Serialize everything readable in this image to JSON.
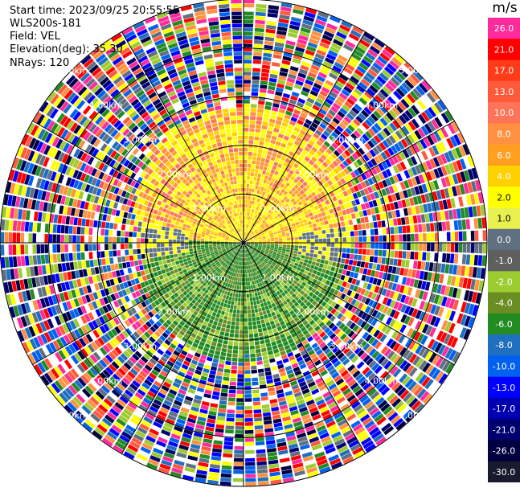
{
  "header": {
    "start_time": "Start time: 2023/09/25 20:55:55",
    "instrument": "WLS200s-181",
    "field": "Field: VEL",
    "elevation": "Elevation(deg): 35.30",
    "nrays": "NRays: 120"
  },
  "colorbar": {
    "unit": "m/s",
    "ticks": [
      "26.0",
      "21.0",
      "17.0",
      "13.0",
      "10.0",
      "8.0",
      "6.0",
      "4.0",
      "2.0",
      "1.0",
      "0.0",
      "-1.0",
      "-2.0",
      "-4.0",
      "-6.0",
      "-8.0",
      "-10.0",
      "-13.0",
      "-17.0",
      "-21.0",
      "-26.0",
      "-30.0"
    ],
    "colors": [
      "#ff2a9c",
      "#ff0000",
      "#ff3b1a",
      "#ff5a3c",
      "#ff7358",
      "#ff9140",
      "#ffa020",
      "#ffd000",
      "#ffff00",
      "#e8f050",
      "#607080",
      "#5f5f5f",
      "#9ccc30",
      "#6a8e23",
      "#228b22",
      "#1f6fbf",
      "#0060f0",
      "#0000ff",
      "#0000b0",
      "#000070",
      "#000040",
      "#1a1a2e"
    ]
  },
  "chart_data": {
    "type": "ppi",
    "field": "VEL",
    "units": "m/s",
    "nrays": 120,
    "elevation_deg": 35.3,
    "range_ring_labels": [
      "1.00km",
      "2.00km",
      "3.00km",
      "4.00km",
      "5.00km"
    ],
    "range_rings_km": [
      1,
      2,
      3,
      4,
      5
    ],
    "azimuth_lines_deg": [
      0,
      30,
      60,
      90,
      120,
      150,
      180,
      210,
      240,
      270,
      300,
      330
    ],
    "max_range_km": 5.0,
    "description_of_field": "Positive (warm/yellow-orange) velocities dominate the northern half near range, negative (green/blue) velocities dominate the southern half near range, noisy multicolor far range."
  }
}
